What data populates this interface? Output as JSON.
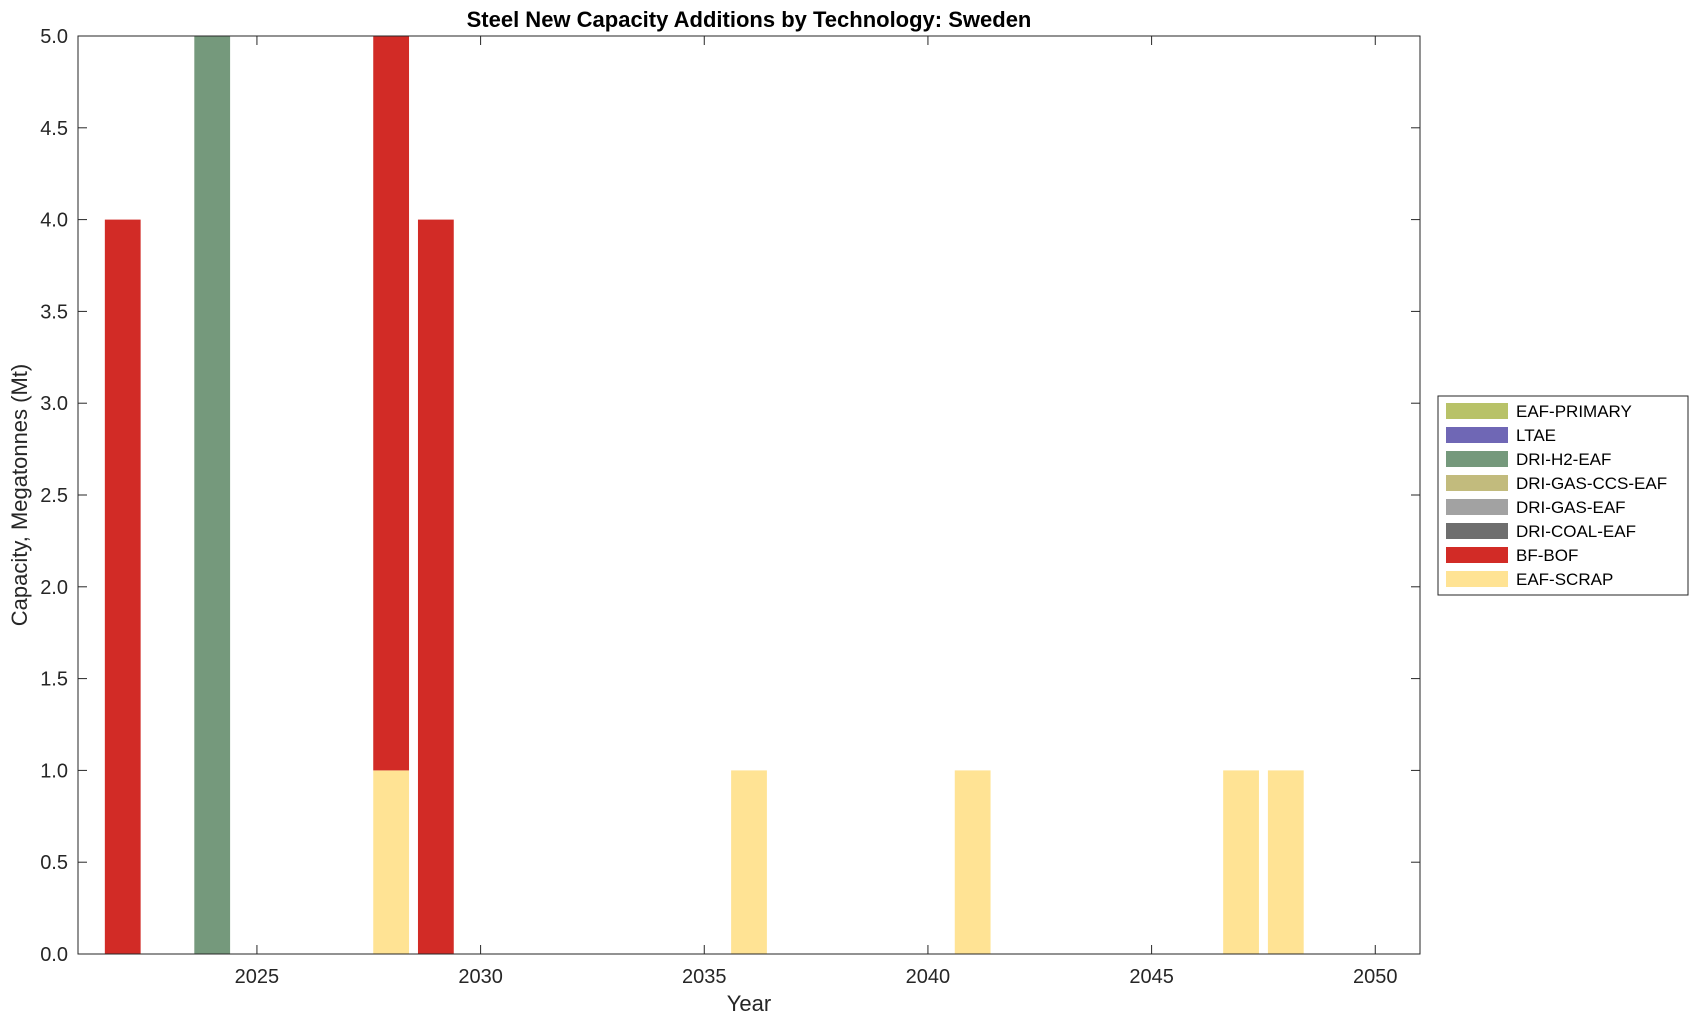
{
  "chart_data": {
    "type": "bar",
    "stacked": true,
    "title": "Steel New Capacity Additions by Technology: Sweden",
    "xlabel": "Year",
    "ylabel": "Capacity, Megatonnes (Mt)",
    "xlim": [
      2021,
      2051
    ],
    "ylim": [
      0,
      5
    ],
    "xticks": [
      2025,
      2030,
      2035,
      2040,
      2045,
      2050
    ],
    "yticks": [
      0,
      0.5,
      1,
      1.5,
      2,
      2.5,
      3,
      3.5,
      4,
      4.5,
      5
    ],
    "ytick_labels": [
      "0.0",
      "0.5",
      "1.0",
      "1.5",
      "2.0",
      "2.5",
      "3.0",
      "3.5",
      "4.0",
      "4.5",
      "5.0"
    ],
    "legend_position": "outside-right",
    "x": [
      2022,
      2023,
      2024,
      2025,
      2026,
      2027,
      2028,
      2029,
      2030,
      2031,
      2032,
      2033,
      2034,
      2035,
      2036,
      2037,
      2038,
      2039,
      2040,
      2041,
      2042,
      2043,
      2044,
      2045,
      2046,
      2047,
      2048,
      2049,
      2050
    ],
    "series": [
      {
        "name": "EAF-SCRAP",
        "color": "#FFE394",
        "values": [
          0,
          0,
          0,
          0,
          0,
          0,
          1,
          0,
          0,
          0,
          0,
          0,
          0,
          0,
          1,
          0,
          0,
          0,
          0,
          1,
          0,
          0,
          0,
          0,
          0,
          1,
          1,
          0,
          0
        ]
      },
      {
        "name": "BF-BOF",
        "color": "#D22B26",
        "values": [
          4,
          0,
          0,
          0,
          0,
          0,
          4,
          4,
          0,
          0,
          0,
          0,
          0,
          0,
          0,
          0,
          0,
          0,
          0,
          0,
          0,
          0,
          0,
          0,
          0,
          0,
          0,
          0,
          0
        ]
      },
      {
        "name": "DRI-COAL-EAF",
        "color": "#6E6E6E",
        "values": [
          0,
          0,
          0,
          0,
          0,
          0,
          0,
          0,
          0,
          0,
          0,
          0,
          0,
          0,
          0,
          0,
          0,
          0,
          0,
          0,
          0,
          0,
          0,
          0,
          0,
          0,
          0,
          0,
          0
        ]
      },
      {
        "name": "DRI-GAS-EAF",
        "color": "#A2A2A2",
        "values": [
          0,
          0,
          0,
          0,
          0,
          0,
          0,
          0,
          0,
          0,
          0,
          0,
          0,
          0,
          0,
          0,
          0,
          0,
          0,
          0,
          0,
          0,
          0,
          0,
          0,
          0,
          0,
          0,
          0
        ]
      },
      {
        "name": "DRI-GAS-CCS-EAF",
        "color": "#C2BB7D",
        "values": [
          0,
          0,
          0,
          0,
          0,
          0,
          0,
          0,
          0,
          0,
          0,
          0,
          0,
          0,
          0,
          0,
          0,
          0,
          0,
          0,
          0,
          0,
          0,
          0,
          0,
          0,
          0,
          0,
          0
        ]
      },
      {
        "name": "DRI-H2-EAF",
        "color": "#75997C",
        "values": [
          0,
          0,
          5,
          0,
          0,
          0,
          0,
          0,
          0,
          0,
          0,
          0,
          0,
          0,
          0,
          0,
          0,
          0,
          0,
          0,
          0,
          0,
          0,
          0,
          0,
          0,
          0,
          0,
          0
        ]
      },
      {
        "name": "LTAE",
        "color": "#6F67B5",
        "values": [
          0,
          0,
          0,
          0,
          0,
          0,
          0,
          0,
          0,
          0,
          0,
          0,
          0,
          0,
          0,
          0,
          0,
          0,
          0,
          0,
          0,
          0,
          0,
          0,
          0,
          0,
          0,
          0,
          0
        ]
      },
      {
        "name": "EAF-PRIMARY",
        "color": "#B8C268",
        "values": [
          0,
          0,
          0,
          0,
          0,
          0,
          0,
          0,
          0,
          0,
          0,
          0,
          0,
          0,
          0,
          0,
          0,
          0,
          0,
          0,
          0,
          0,
          0,
          0,
          0,
          0,
          0,
          0,
          0
        ]
      }
    ],
    "legend_order": [
      "EAF-PRIMARY",
      "LTAE",
      "DRI-H2-EAF",
      "DRI-GAS-CCS-EAF",
      "DRI-GAS-EAF",
      "DRI-COAL-EAF",
      "BF-BOF",
      "EAF-SCRAP"
    ]
  }
}
